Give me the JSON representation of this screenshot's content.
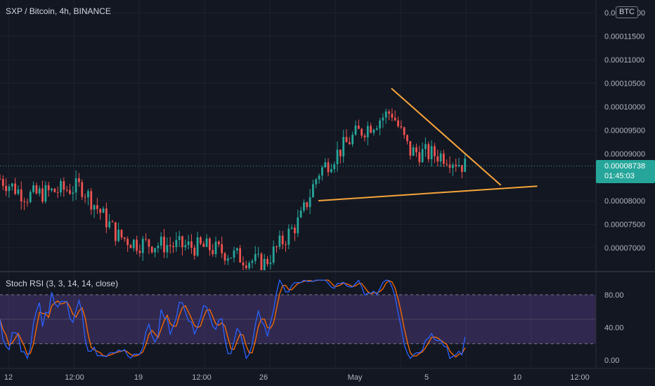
{
  "header": {
    "symbol_title": "SXP / Bitcoin, 4h, BINANCE",
    "currency_badge": "BTC"
  },
  "price_scale": {
    "labels": [
      "0.00012000",
      "0.00011500",
      "0.00011000",
      "0.00010500",
      "0.00010000",
      "0.00009500",
      "0.00009000",
      "0.00008500",
      "0.00008000",
      "0.00007500",
      "0.00007000"
    ],
    "current_price": "0.00008738",
    "countdown": "01:45:03",
    "current_price_color": "#26a69a"
  },
  "indicator": {
    "title": "Stoch RSI (3, 3, 14, 14, close)",
    "labels": [
      "80.00",
      "40.00",
      "0.00"
    ],
    "k_color": "#2962ff",
    "d_color": "#ff6d00",
    "band_color": "#7e57c2"
  },
  "time_axis": {
    "labels": [
      "12",
      "12:00",
      "19",
      "12:00",
      "26",
      "May",
      "5",
      "10",
      "12:00"
    ]
  },
  "colors": {
    "up": "#26a69a",
    "down": "#ef5350",
    "trendline": "#f7a43a",
    "background": "#131722"
  },
  "chart_data": {
    "type": "candlestick",
    "symbol": "SXP / Bitcoin",
    "interval": "4h",
    "exchange": "BINANCE",
    "ylim": [
      6.6e-05,
      0.0001232
    ],
    "last_price": 8.738e-05,
    "key_levels": [
      {
        "time": "Apr 11",
        "value": 8.6e-05
      },
      {
        "time": "Apr 13",
        "value": 8.1e-05
      },
      {
        "time": "Apr 16",
        "value": 8.3e-05
      },
      {
        "time": "Apr 18",
        "value": 7.25e-05
      },
      {
        "time": "Apr 19",
        "value": 7.1e-05
      },
      {
        "time": "Apr 23",
        "value": 7e-05
      },
      {
        "time": "Apr 26",
        "value": 6.65e-05
      },
      {
        "time": "Apr 28",
        "value": 7.6e-05
      },
      {
        "time": "Apr 29",
        "value": 8.6e-05
      },
      {
        "time": "May 1",
        "value": 9.4e-05
      },
      {
        "time": "May 3",
        "value": 9.9e-05
      },
      {
        "time": "May 4",
        "value": 9.05e-05
      },
      {
        "time": "May 6",
        "value": 8.95e-05
      },
      {
        "time": "May 7",
        "value": 8.74e-05
      }
    ],
    "trendlines": [
      {
        "from": {
          "time": "Apr 29",
          "value": 8e-05
        },
        "to": {
          "time": "May 11",
          "value": 8.31e-05
        }
      },
      {
        "from": {
          "time": "May 3",
          "value": 0.0001039
        },
        "to": {
          "time": "May 9",
          "value": 8.33e-05
        }
      }
    ],
    "stoch_rsi": {
      "ylim": [
        0,
        100
      ],
      "upper_band": 80,
      "lower_band": 20,
      "k_last": 32
    }
  }
}
